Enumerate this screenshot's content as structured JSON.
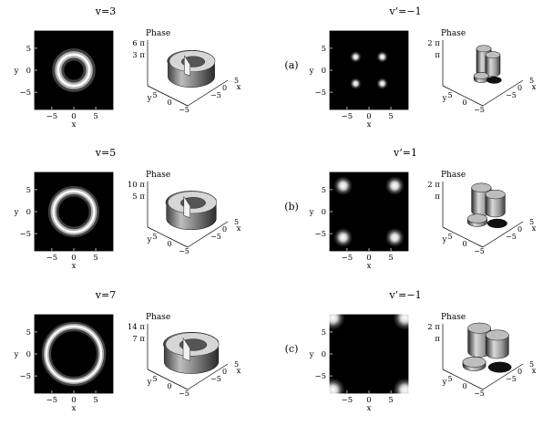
{
  "rows": [
    {
      "label": "(a)",
      "left": {
        "title": "v=3",
        "phase_label": "Phase",
        "phase_ticks": [
          "6 π",
          "3 π"
        ],
        "ring": 0.4,
        "glow": 0.07
      },
      "right": {
        "title": "v’=−1",
        "phase_label": "Phase",
        "phase_ticks": [
          "2 π",
          "π"
        ],
        "spots": 4,
        "spot_pos": 0.17,
        "spot_size": 0.045
      }
    },
    {
      "label": "(b)",
      "left": {
        "title": "v=5",
        "phase_label": "Phase",
        "phase_ticks": [
          "10 π",
          "5 π"
        ],
        "ring": 0.52,
        "glow": 0.06
      },
      "right": {
        "title": "v’=1",
        "phase_label": "Phase",
        "phase_ticks": [
          "2 π",
          "π"
        ],
        "spots": 4,
        "spot_pos": 0.33,
        "spot_size": 0.075
      }
    },
    {
      "label": "(c)",
      "left": {
        "title": "v=7",
        "phase_label": "Phase",
        "phase_ticks": [
          "14 π",
          "7 π"
        ],
        "ring": 0.7,
        "glow": 0.055
      },
      "right": {
        "title": "v’=−1",
        "phase_label": "Phase",
        "phase_ticks": [
          "2 π",
          "π"
        ],
        "spots": 4,
        "spot_pos": 0.46,
        "spot_size": 0.095
      }
    }
  ],
  "axes": {
    "xlabel": "x",
    "ylabel": "y",
    "x_ticks": [
      "−5",
      "0",
      "5"
    ],
    "y_ticks": [
      "5",
      "0",
      "−5"
    ],
    "surface_x_label": "x",
    "surface_y_label": "y",
    "surface_x_ticks": [
      "5",
      "0",
      "−5"
    ],
    "surface_y_ticks": [
      "5",
      "0",
      "−5"
    ]
  },
  "colors": {
    "background": "#000000",
    "glow": "#ffffff",
    "ink": "#000000"
  }
}
